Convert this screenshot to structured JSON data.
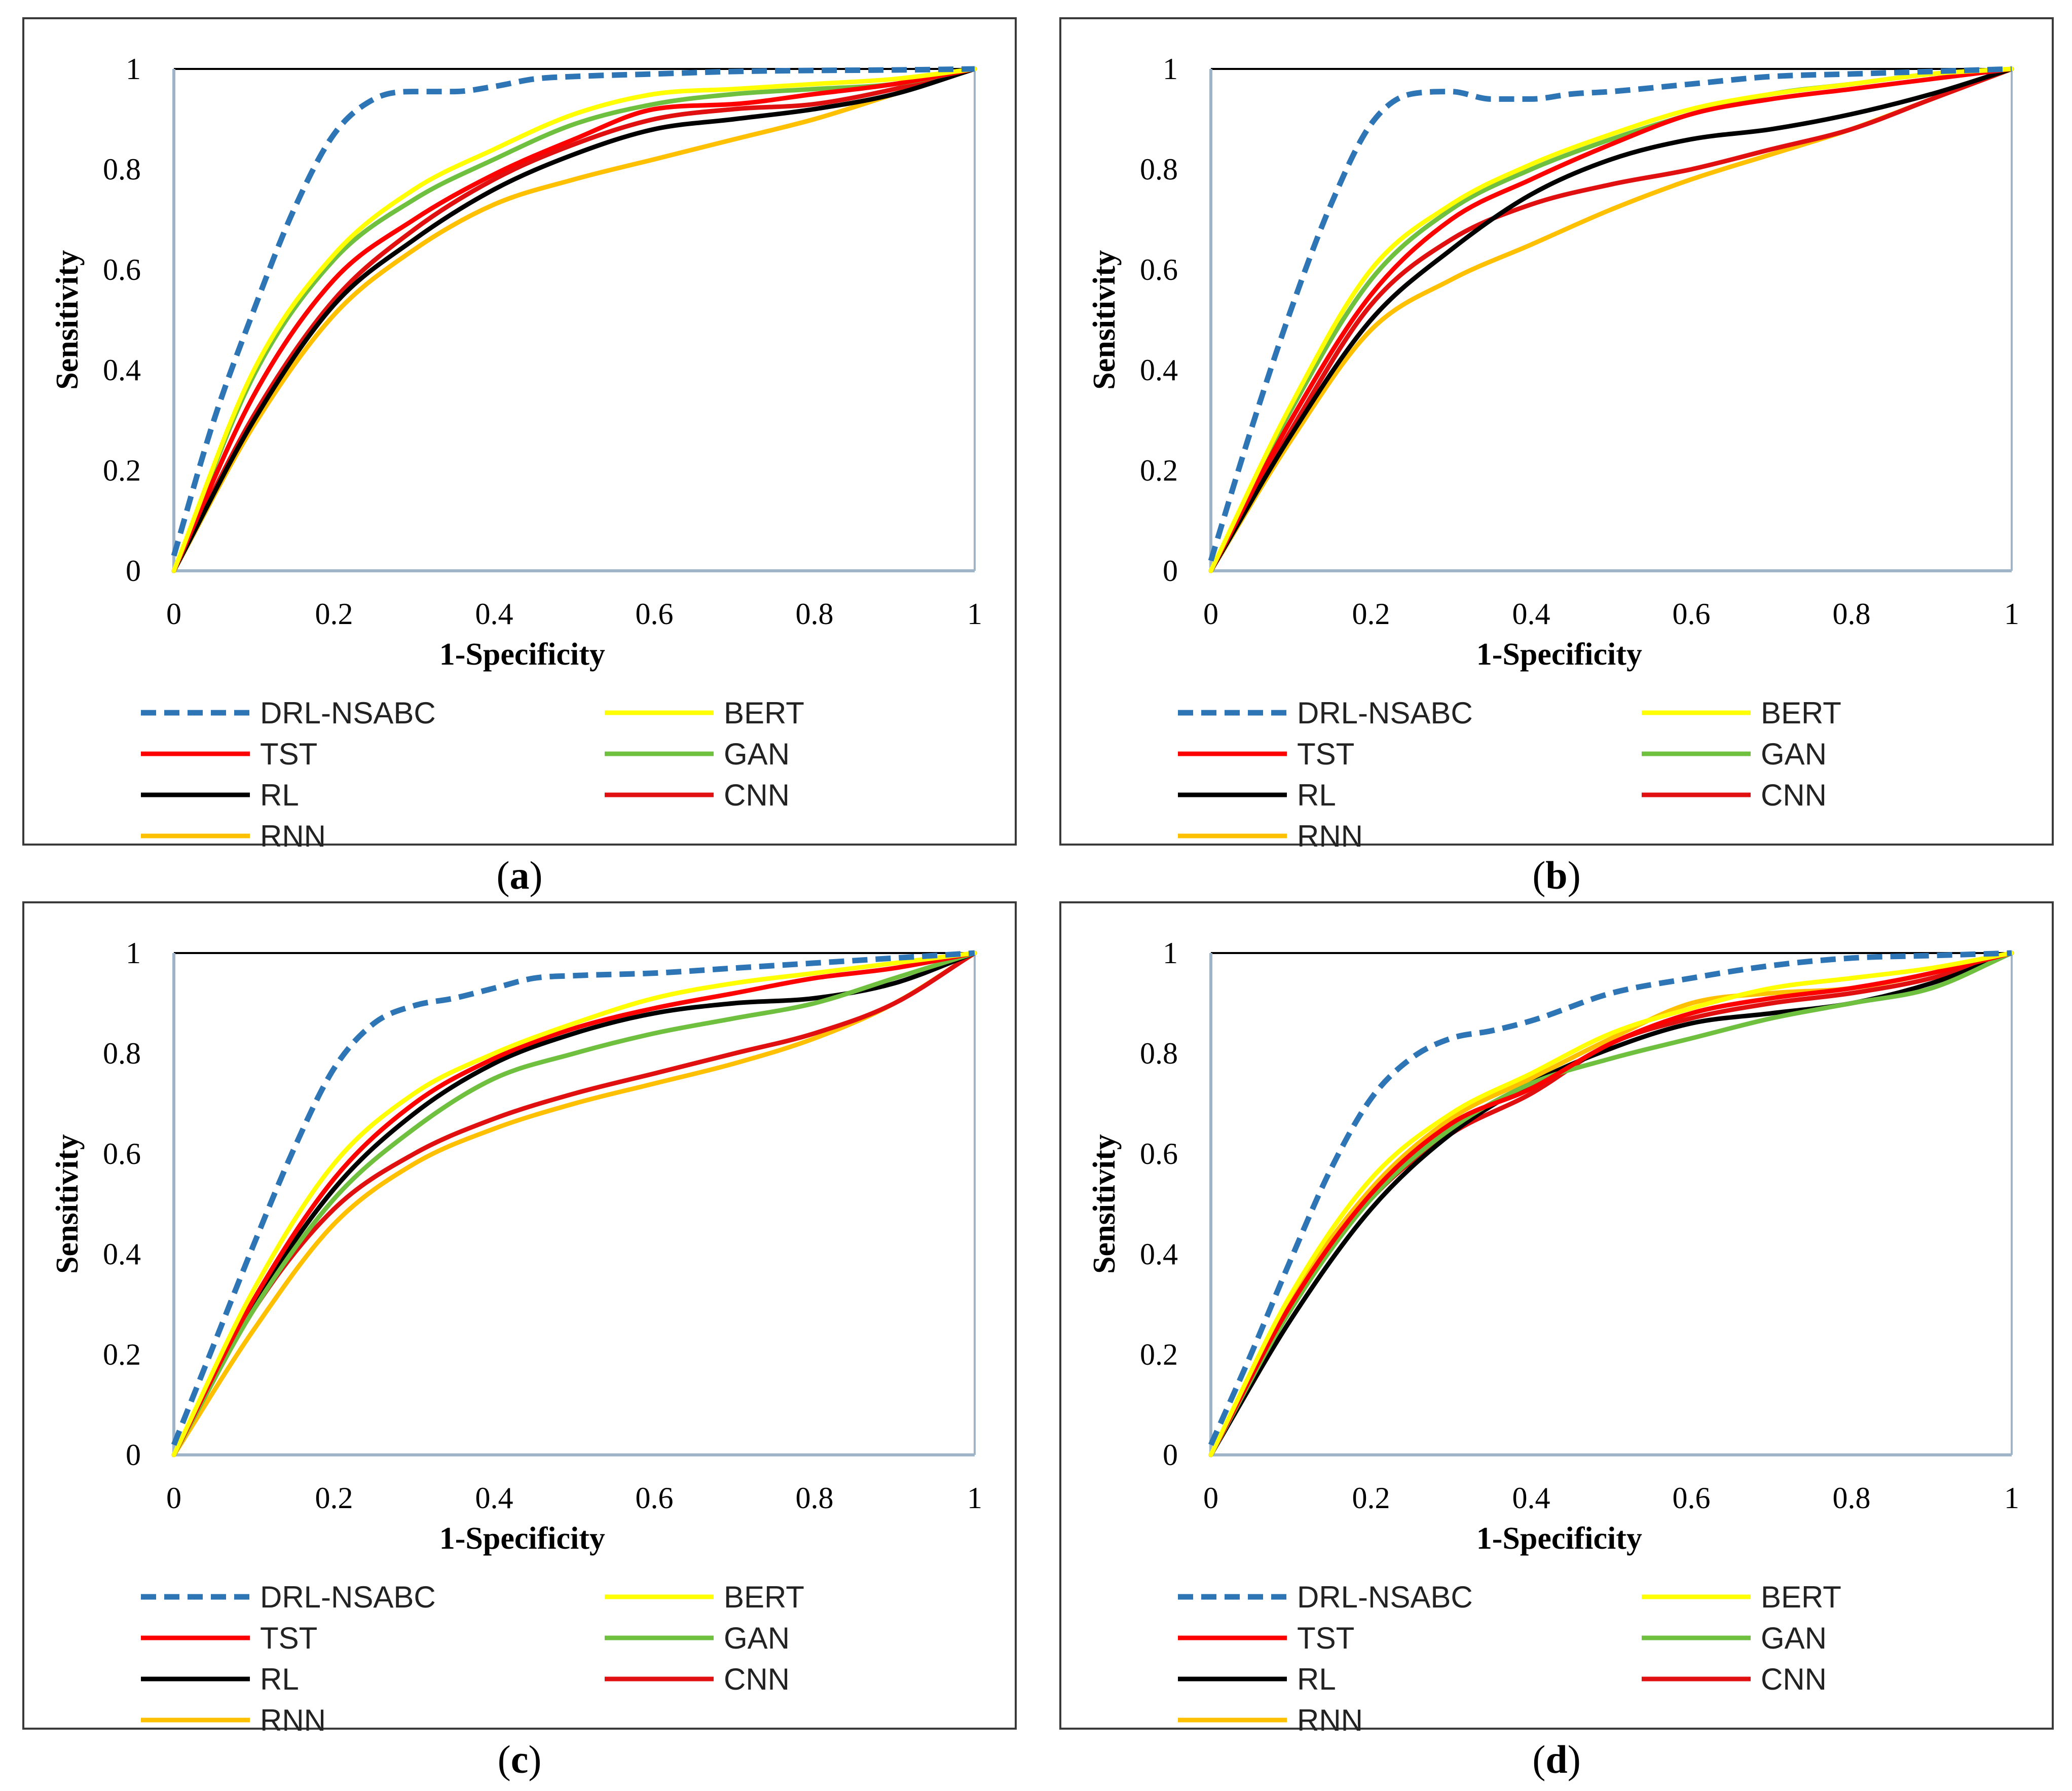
{
  "figure": {
    "colors": {
      "DRL-NSABC": "#2e75b6",
      "BERT": "#ffff00",
      "TST": "#ff0000",
      "GAN": "#70c040",
      "RL": "#000000",
      "CNN": "#e01010",
      "RNN": "#ffc000",
      "axis": "#a0b4c8"
    }
  },
  "chart_data": [
    {
      "id": "a",
      "caption_open": "(",
      "caption_letter": "a",
      "caption_close": ")",
      "type": "line",
      "xlabel": "1-Specificity",
      "ylabel": "Sensitivity",
      "xlim": [
        0,
        1
      ],
      "ylim": [
        0,
        1
      ],
      "xticks": [
        "0",
        "0.2",
        "0.4",
        "0.6",
        "0.8",
        "1"
      ],
      "yticks": [
        "0",
        "0.2",
        "0.4",
        "0.6",
        "0.8",
        "1"
      ],
      "legend": [
        "DRL-NSABC",
        "BERT",
        "TST",
        "GAN",
        "RL",
        "CNN",
        "RNN"
      ],
      "series": [
        {
          "name": "DRL-NSABC",
          "style": "dashed",
          "x": [
            0,
            0.05,
            0.1,
            0.15,
            0.2,
            0.25,
            0.3,
            0.35,
            0.4,
            0.45,
            0.5,
            0.6,
            0.7,
            0.8,
            0.9,
            1
          ],
          "y": [
            0.03,
            0.3,
            0.52,
            0.72,
            0.87,
            0.94,
            0.955,
            0.955,
            0.965,
            0.98,
            0.985,
            0.99,
            0.995,
            0.997,
            0.998,
            1
          ]
        },
        {
          "name": "BERT",
          "x": [
            0,
            0.1,
            0.2,
            0.3,
            0.4,
            0.5,
            0.6,
            0.7,
            0.8,
            0.9,
            1
          ],
          "y": [
            0,
            0.4,
            0.63,
            0.76,
            0.84,
            0.91,
            0.95,
            0.96,
            0.97,
            0.98,
            1
          ]
        },
        {
          "name": "TST",
          "x": [
            0,
            0.1,
            0.2,
            0.3,
            0.4,
            0.5,
            0.6,
            0.7,
            0.8,
            0.9,
            1
          ],
          "y": [
            0,
            0.35,
            0.58,
            0.7,
            0.79,
            0.86,
            0.92,
            0.93,
            0.95,
            0.97,
            1
          ]
        },
        {
          "name": "GAN",
          "x": [
            0,
            0.1,
            0.2,
            0.3,
            0.4,
            0.5,
            0.6,
            0.7,
            0.8,
            0.9,
            1
          ],
          "y": [
            0,
            0.39,
            0.62,
            0.74,
            0.82,
            0.89,
            0.93,
            0.95,
            0.96,
            0.97,
            1
          ]
        },
        {
          "name": "RL",
          "x": [
            0,
            0.1,
            0.2,
            0.3,
            0.4,
            0.5,
            0.6,
            0.7,
            0.8,
            0.9,
            1
          ],
          "y": [
            0,
            0.3,
            0.53,
            0.66,
            0.76,
            0.83,
            0.88,
            0.9,
            0.92,
            0.95,
            1
          ]
        },
        {
          "name": "CNN",
          "x": [
            0,
            0.1,
            0.2,
            0.3,
            0.4,
            0.5,
            0.6,
            0.7,
            0.8,
            0.9,
            1
          ],
          "y": [
            0,
            0.31,
            0.54,
            0.68,
            0.78,
            0.85,
            0.9,
            0.92,
            0.93,
            0.96,
            1
          ]
        },
        {
          "name": "RNN",
          "x": [
            0,
            0.1,
            0.2,
            0.3,
            0.4,
            0.5,
            0.6,
            0.7,
            0.8,
            0.9,
            1
          ],
          "y": [
            0,
            0.29,
            0.51,
            0.64,
            0.73,
            0.78,
            0.82,
            0.86,
            0.9,
            0.95,
            1
          ]
        }
      ]
    },
    {
      "id": "b",
      "caption_open": "(",
      "caption_letter": "b",
      "caption_close": ")",
      "type": "line",
      "xlabel": "1-Specificity",
      "ylabel": "Sensitivity",
      "xlim": [
        0,
        1
      ],
      "ylim": [
        0,
        1
      ],
      "xticks": [
        "0",
        "0.2",
        "0.4",
        "0.6",
        "0.8",
        "1"
      ],
      "yticks": [
        "0",
        "0.2",
        "0.4",
        "0.6",
        "0.8",
        "1"
      ],
      "legend": [
        "DRL-NSABC",
        "BERT",
        "TST",
        "GAN",
        "RL",
        "CNN",
        "RNN"
      ],
      "series": [
        {
          "name": "DRL-NSABC",
          "style": "dashed",
          "x": [
            0,
            0.05,
            0.1,
            0.15,
            0.2,
            0.25,
            0.3,
            0.35,
            0.4,
            0.45,
            0.5,
            0.6,
            0.7,
            0.8,
            0.9,
            1
          ],
          "y": [
            0.02,
            0.28,
            0.52,
            0.73,
            0.89,
            0.95,
            0.955,
            0.94,
            0.94,
            0.95,
            0.955,
            0.97,
            0.985,
            0.99,
            0.995,
            1
          ]
        },
        {
          "name": "BERT",
          "x": [
            0,
            0.1,
            0.2,
            0.3,
            0.4,
            0.5,
            0.6,
            0.7,
            0.8,
            0.9,
            1
          ],
          "y": [
            0,
            0.33,
            0.6,
            0.73,
            0.81,
            0.87,
            0.92,
            0.95,
            0.97,
            0.99,
            1
          ]
        },
        {
          "name": "TST",
          "x": [
            0,
            0.1,
            0.2,
            0.3,
            0.4,
            0.5,
            0.6,
            0.7,
            0.8,
            0.9,
            1
          ],
          "y": [
            0,
            0.3,
            0.55,
            0.7,
            0.78,
            0.85,
            0.91,
            0.94,
            0.96,
            0.98,
            1
          ]
        },
        {
          "name": "GAN",
          "x": [
            0,
            0.1,
            0.2,
            0.3,
            0.4,
            0.5,
            0.6,
            0.7,
            0.8,
            0.9,
            1
          ],
          "y": [
            0,
            0.32,
            0.58,
            0.72,
            0.8,
            0.86,
            0.91,
            0.95,
            0.97,
            0.99,
            1
          ]
        },
        {
          "name": "RL",
          "x": [
            0,
            0.1,
            0.2,
            0.3,
            0.4,
            0.5,
            0.6,
            0.7,
            0.8,
            0.9,
            1
          ],
          "y": [
            0,
            0.27,
            0.5,
            0.64,
            0.75,
            0.82,
            0.86,
            0.88,
            0.91,
            0.95,
            1
          ]
        },
        {
          "name": "CNN",
          "x": [
            0,
            0.1,
            0.2,
            0.3,
            0.4,
            0.5,
            0.6,
            0.7,
            0.8,
            0.9,
            1
          ],
          "y": [
            0,
            0.28,
            0.53,
            0.66,
            0.73,
            0.77,
            0.8,
            0.84,
            0.88,
            0.94,
            1
          ]
        },
        {
          "name": "RNN",
          "x": [
            0,
            0.1,
            0.2,
            0.3,
            0.4,
            0.5,
            0.6,
            0.7,
            0.8,
            0.9,
            1
          ],
          "y": [
            0,
            0.26,
            0.48,
            0.58,
            0.65,
            0.72,
            0.78,
            0.83,
            0.88,
            0.94,
            1
          ]
        }
      ]
    },
    {
      "id": "c",
      "caption_open": "(",
      "caption_letter": "c",
      "caption_close": ")",
      "type": "line",
      "xlabel": "1-Specificity",
      "ylabel": "Sensitivity",
      "xlim": [
        0,
        1
      ],
      "ylim": [
        0,
        1
      ],
      "xticks": [
        "0",
        "0.2",
        "0.4",
        "0.6",
        "0.8",
        "1"
      ],
      "yticks": [
        "0",
        "0.2",
        "0.4",
        "0.6",
        "0.8",
        "1"
      ],
      "legend": [
        "DRL-NSABC",
        "BERT",
        "TST",
        "GAN",
        "RL",
        "CNN",
        "RNN"
      ],
      "series": [
        {
          "name": "DRL-NSABC",
          "style": "dashed",
          "x": [
            0,
            0.05,
            0.1,
            0.15,
            0.2,
            0.25,
            0.3,
            0.35,
            0.4,
            0.45,
            0.5,
            0.6,
            0.7,
            0.8,
            0.9,
            1
          ],
          "y": [
            0.02,
            0.22,
            0.42,
            0.61,
            0.77,
            0.86,
            0.895,
            0.91,
            0.93,
            0.95,
            0.955,
            0.96,
            0.97,
            0.98,
            0.99,
            1
          ]
        },
        {
          "name": "BERT",
          "x": [
            0,
            0.1,
            0.2,
            0.3,
            0.4,
            0.5,
            0.6,
            0.7,
            0.8,
            0.9,
            1
          ],
          "y": [
            0,
            0.33,
            0.58,
            0.72,
            0.8,
            0.86,
            0.91,
            0.94,
            0.96,
            0.98,
            1
          ]
        },
        {
          "name": "TST",
          "x": [
            0,
            0.1,
            0.2,
            0.3,
            0.4,
            0.5,
            0.6,
            0.7,
            0.8,
            0.9,
            1
          ],
          "y": [
            0,
            0.31,
            0.55,
            0.7,
            0.79,
            0.85,
            0.89,
            0.92,
            0.95,
            0.97,
            1
          ]
        },
        {
          "name": "GAN",
          "x": [
            0,
            0.1,
            0.2,
            0.3,
            0.4,
            0.5,
            0.6,
            0.7,
            0.8,
            0.9,
            1
          ],
          "y": [
            0,
            0.29,
            0.51,
            0.65,
            0.75,
            0.8,
            0.84,
            0.87,
            0.9,
            0.95,
            1
          ]
        },
        {
          "name": "RL",
          "x": [
            0,
            0.1,
            0.2,
            0.3,
            0.4,
            0.5,
            0.6,
            0.7,
            0.8,
            0.9,
            1
          ],
          "y": [
            0,
            0.3,
            0.53,
            0.68,
            0.78,
            0.84,
            0.88,
            0.9,
            0.91,
            0.94,
            1
          ]
        },
        {
          "name": "CNN",
          "x": [
            0,
            0.1,
            0.2,
            0.3,
            0.4,
            0.5,
            0.6,
            0.7,
            0.8,
            0.9,
            1
          ],
          "y": [
            0,
            0.29,
            0.49,
            0.6,
            0.67,
            0.72,
            0.76,
            0.8,
            0.84,
            0.9,
            1
          ]
        },
        {
          "name": "RNN",
          "x": [
            0,
            0.1,
            0.2,
            0.3,
            0.4,
            0.5,
            0.6,
            0.7,
            0.8,
            0.9,
            1
          ],
          "y": [
            0,
            0.25,
            0.46,
            0.58,
            0.65,
            0.7,
            0.74,
            0.78,
            0.83,
            0.9,
            1
          ]
        }
      ]
    },
    {
      "id": "d",
      "caption_open": "(",
      "caption_letter": "d",
      "caption_close": ")",
      "type": "line",
      "xlabel": "1-Specificity",
      "ylabel": "Sensitivity",
      "xlim": [
        0,
        1
      ],
      "ylim": [
        0,
        1
      ],
      "xticks": [
        "0",
        "0.2",
        "0.4",
        "0.6",
        "0.8",
        "1"
      ],
      "yticks": [
        "0",
        "0.2",
        "0.4",
        "0.6",
        "0.8",
        "1"
      ],
      "legend": [
        "DRL-NSABC",
        "BERT",
        "TST",
        "GAN",
        "RL",
        "CNN",
        "RNN"
      ],
      "series": [
        {
          "name": "DRL-NSABC",
          "style": "dashed",
          "x": [
            0,
            0.05,
            0.1,
            0.15,
            0.2,
            0.25,
            0.3,
            0.35,
            0.4,
            0.5,
            0.6,
            0.7,
            0.8,
            0.9,
            1
          ],
          "y": [
            0.02,
            0.2,
            0.39,
            0.57,
            0.71,
            0.79,
            0.83,
            0.845,
            0.865,
            0.92,
            0.95,
            0.975,
            0.99,
            0.995,
            1
          ]
        },
        {
          "name": "BERT",
          "x": [
            0,
            0.1,
            0.2,
            0.3,
            0.4,
            0.5,
            0.6,
            0.7,
            0.8,
            0.9,
            1
          ],
          "y": [
            0,
            0.32,
            0.55,
            0.68,
            0.76,
            0.84,
            0.89,
            0.93,
            0.95,
            0.97,
            1
          ]
        },
        {
          "name": "TST",
          "x": [
            0,
            0.1,
            0.2,
            0.3,
            0.4,
            0.5,
            0.6,
            0.7,
            0.8,
            0.9,
            1
          ],
          "y": [
            0,
            0.3,
            0.52,
            0.66,
            0.73,
            0.82,
            0.88,
            0.91,
            0.93,
            0.96,
            1
          ]
        },
        {
          "name": "GAN",
          "x": [
            0,
            0.1,
            0.2,
            0.3,
            0.4,
            0.5,
            0.6,
            0.7,
            0.8,
            0.9,
            1
          ],
          "y": [
            0,
            0.29,
            0.51,
            0.65,
            0.74,
            0.79,
            0.83,
            0.87,
            0.9,
            0.93,
            1
          ]
        },
        {
          "name": "RL",
          "x": [
            0,
            0.1,
            0.2,
            0.3,
            0.4,
            0.5,
            0.6,
            0.7,
            0.8,
            0.9,
            1
          ],
          "y": [
            0,
            0.27,
            0.49,
            0.64,
            0.74,
            0.81,
            0.86,
            0.88,
            0.9,
            0.94,
            1
          ]
        },
        {
          "name": "CNN",
          "x": [
            0,
            0.1,
            0.2,
            0.3,
            0.4,
            0.5,
            0.6,
            0.7,
            0.8,
            0.9,
            1
          ],
          "y": [
            0,
            0.29,
            0.51,
            0.64,
            0.72,
            0.82,
            0.87,
            0.9,
            0.92,
            0.95,
            1
          ]
        },
        {
          "name": "RNN",
          "x": [
            0,
            0.1,
            0.2,
            0.3,
            0.4,
            0.5,
            0.6,
            0.7,
            0.8,
            0.9,
            1
          ],
          "y": [
            0,
            0.31,
            0.53,
            0.67,
            0.75,
            0.83,
            0.9,
            0.92,
            0.93,
            0.96,
            1
          ]
        }
      ]
    }
  ]
}
